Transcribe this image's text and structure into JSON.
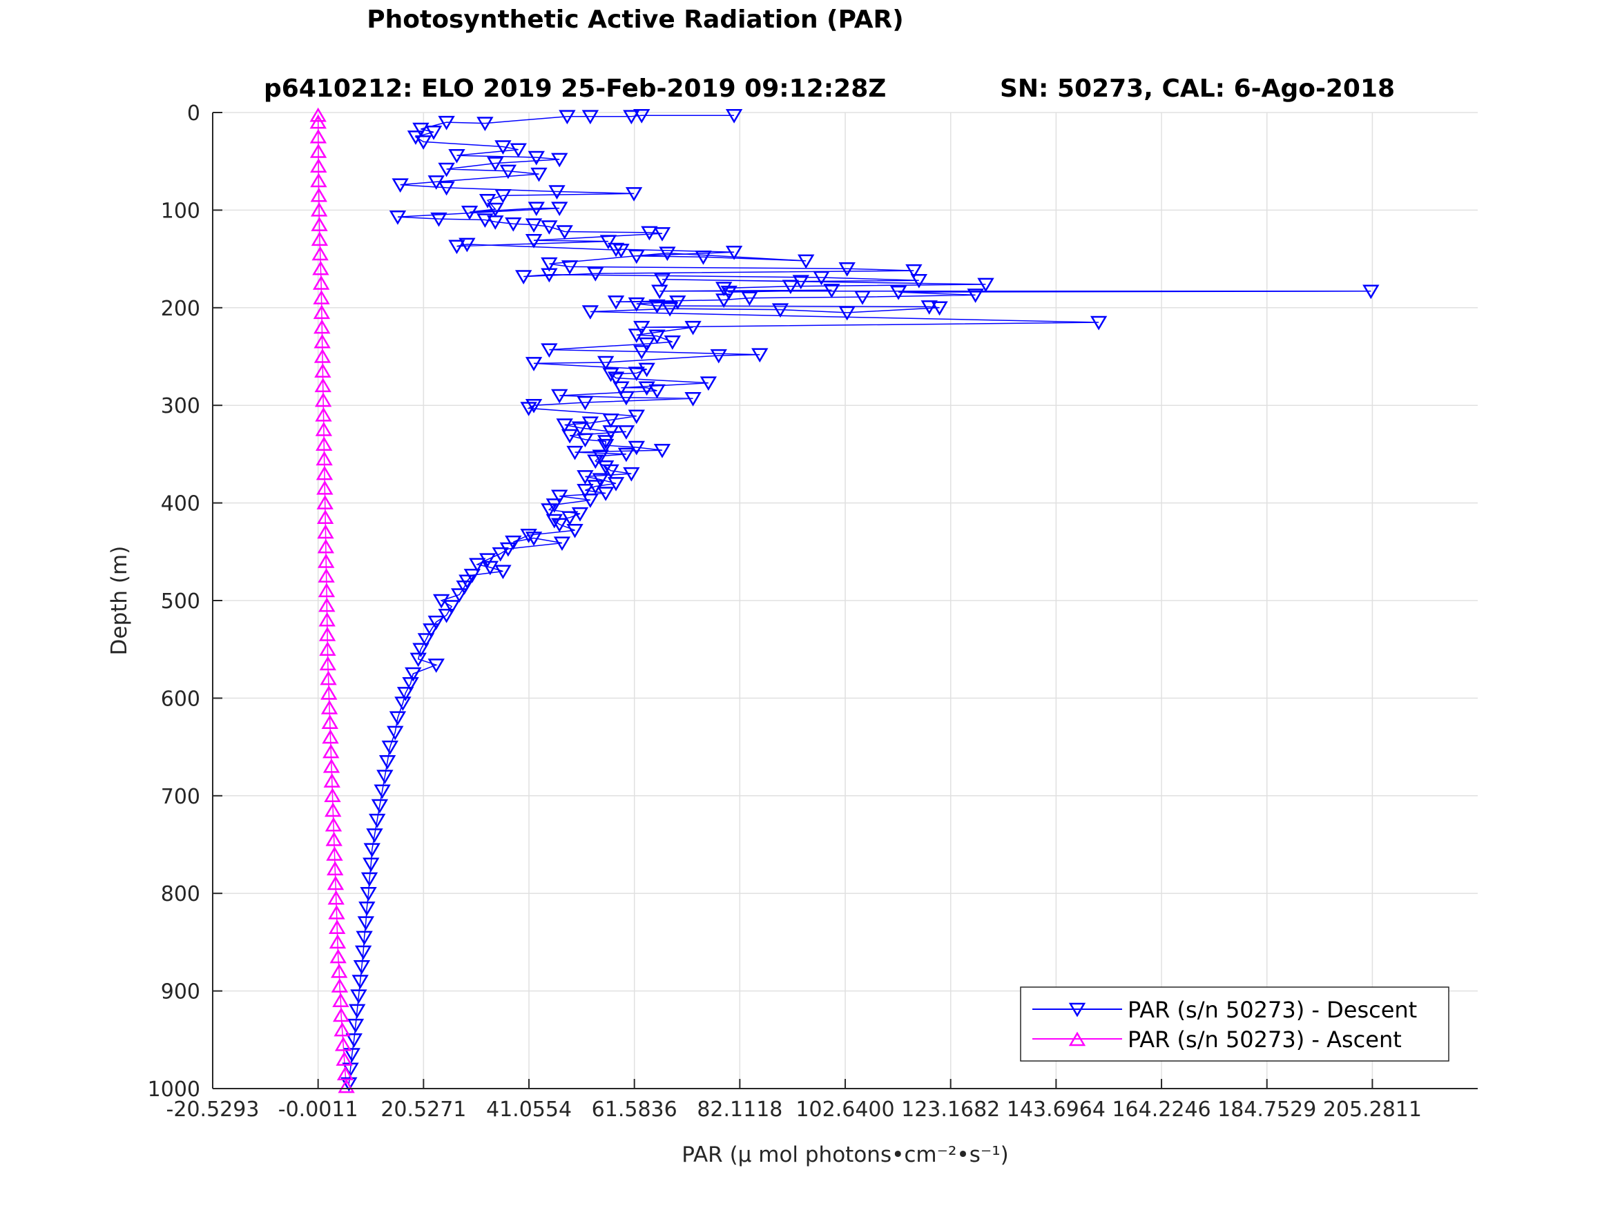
{
  "chart_data": {
    "type": "scatter",
    "title": "Photosynthetic Active Radiation (PAR)",
    "subtitle_left": "p6410212: ELO 2019 25-Feb-2019 09:12:28Z",
    "subtitle_right": "SN: 50273, CAL: 6-Ago-2018",
    "xlabel": "PAR (μ mol photons•cm⁻²•s⁻¹)",
    "ylabel": "Depth (m)",
    "xlim": [
      -20.5293,
      225.8
    ],
    "ylim": [
      0,
      1000
    ],
    "y_reversed": true,
    "grid": true,
    "legend_position": "bottom-right",
    "xticks": [
      -20.5293,
      -0.0011,
      20.5271,
      41.0554,
      61.5836,
      82.1118,
      102.64,
      123.1682,
      143.6964,
      164.2246,
      184.7529,
      205.2811
    ],
    "xtick_labels": [
      "-20.5293",
      "-0.0011",
      "20.5271",
      "41.0554",
      "61.5836",
      "82.1118",
      "102.6400",
      "123.1682",
      "143.6964",
      "164.2246",
      "184.7529",
      "205.2811"
    ],
    "yticks": [
      0,
      100,
      200,
      300,
      400,
      500,
      600,
      700,
      800,
      900,
      1000
    ],
    "ytick_labels": [
      "0",
      "100",
      "200",
      "300",
      "400",
      "500",
      "600",
      "700",
      "800",
      "900",
      "1000"
    ],
    "series": [
      {
        "name": "PAR (s/n 50273) - Descent",
        "color": "#0000ff",
        "marker": "triangle-down",
        "points": [
          [
            81.0,
            3
          ],
          [
            63.0,
            3
          ],
          [
            61.0,
            4
          ],
          [
            53.0,
            4
          ],
          [
            48.5,
            4
          ],
          [
            32.5,
            11
          ],
          [
            25.0,
            10
          ],
          [
            20.0,
            17
          ],
          [
            22.5,
            20
          ],
          [
            19.0,
            25
          ],
          [
            20.5,
            30
          ],
          [
            36.0,
            35
          ],
          [
            39.0,
            38
          ],
          [
            27.0,
            44
          ],
          [
            42.5,
            46
          ],
          [
            47.0,
            48
          ],
          [
            34.5,
            52
          ],
          [
            25.0,
            58
          ],
          [
            37.0,
            60
          ],
          [
            43.0,
            63
          ],
          [
            23.0,
            71
          ],
          [
            16.0,
            74
          ],
          [
            25.0,
            77
          ],
          [
            46.5,
            81
          ],
          [
            61.5,
            83
          ],
          [
            36.0,
            85
          ],
          [
            33.0,
            90
          ],
          [
            34.5,
            99
          ],
          [
            29.5,
            102
          ],
          [
            42.5,
            98
          ],
          [
            47.0,
            98
          ],
          [
            15.5,
            107
          ],
          [
            23.5,
            109
          ],
          [
            32.5,
            110
          ],
          [
            34.5,
            112
          ],
          [
            38.0,
            114
          ],
          [
            42.0,
            115
          ],
          [
            45.0,
            117
          ],
          [
            48.0,
            122
          ],
          [
            64.5,
            123
          ],
          [
            67.0,
            124
          ],
          [
            42.0,
            131
          ],
          [
            56.5,
            132
          ],
          [
            27.0,
            137
          ],
          [
            29.0,
            135
          ],
          [
            59.0,
            141
          ],
          [
            58.0,
            140
          ],
          [
            81.0,
            143
          ],
          [
            62.0,
            147
          ],
          [
            75.0,
            148
          ],
          [
            95.0,
            152
          ],
          [
            68.0,
            144
          ],
          [
            45.0,
            155
          ],
          [
            49.0,
            158
          ],
          [
            103.0,
            160
          ],
          [
            116.0,
            162
          ],
          [
            54.0,
            165
          ],
          [
            40.0,
            168
          ],
          [
            45.0,
            166
          ],
          [
            98.0,
            169
          ],
          [
            117.0,
            172
          ],
          [
            94.0,
            173
          ],
          [
            67.0,
            171
          ],
          [
            130.0,
            176
          ],
          [
            92.0,
            178
          ],
          [
            79.0,
            180
          ],
          [
            80.0,
            184
          ],
          [
            100.0,
            182
          ],
          [
            66.5,
            183
          ],
          [
            205.0,
            183
          ],
          [
            113.0,
            184
          ],
          [
            128.0,
            187
          ],
          [
            106.0,
            189
          ],
          [
            84.0,
            190
          ],
          [
            79.0,
            192
          ],
          [
            58.0,
            194
          ],
          [
            70.0,
            194
          ],
          [
            62.0,
            196
          ],
          [
            66.0,
            198
          ],
          [
            119.0,
            199
          ],
          [
            121.0,
            200
          ],
          [
            103.0,
            205
          ],
          [
            90.0,
            202
          ],
          [
            68.5,
            201
          ],
          [
            53.0,
            204
          ],
          [
            152.0,
            215
          ],
          [
            63.0,
            220
          ],
          [
            73.0,
            220
          ],
          [
            62.0,
            228
          ],
          [
            66.0,
            229
          ],
          [
            69.0,
            235
          ],
          [
            64.0,
            237
          ],
          [
            45.0,
            243
          ],
          [
            63.0,
            245
          ],
          [
            86.0,
            248
          ],
          [
            78.0,
            249
          ],
          [
            56.0,
            256
          ],
          [
            42.0,
            257
          ],
          [
            64.0,
            263
          ],
          [
            62.0,
            267
          ],
          [
            57.0,
            268
          ],
          [
            58.0,
            272
          ],
          [
            76.0,
            277
          ],
          [
            59.0,
            282
          ],
          [
            64.0,
            282
          ],
          [
            66.0,
            285
          ],
          [
            47.0,
            290
          ],
          [
            60.0,
            292
          ],
          [
            73.0,
            293
          ],
          [
            52.0,
            297
          ],
          [
            42.0,
            300
          ],
          [
            41.0,
            303
          ],
          [
            62.0,
            311
          ],
          [
            57.0,
            315
          ],
          [
            53.0,
            318
          ],
          [
            48.0,
            320
          ],
          [
            51.0,
            323
          ],
          [
            57.0,
            327
          ],
          [
            60.0,
            327
          ],
          [
            49.0,
            331
          ],
          [
            52.0,
            335
          ],
          [
            56.0,
            337
          ],
          [
            56.0,
            341
          ],
          [
            62.0,
            343
          ],
          [
            67.0,
            346
          ],
          [
            50.0,
            348
          ],
          [
            60.0,
            350
          ],
          [
            55.0,
            352
          ],
          [
            54.0,
            357
          ],
          [
            56.0,
            363
          ],
          [
            57.0,
            367
          ],
          [
            61.0,
            370
          ],
          [
            52.0,
            373
          ],
          [
            55.0,
            376
          ],
          [
            58.0,
            380
          ],
          [
            54.0,
            383
          ],
          [
            52.0,
            387
          ],
          [
            56.0,
            390
          ],
          [
            47.0,
            393
          ],
          [
            53.0,
            397
          ],
          [
            46.0,
            402
          ],
          [
            45.0,
            407
          ],
          [
            51.0,
            411
          ],
          [
            49.0,
            415
          ],
          [
            46.0,
            418
          ],
          [
            47.0,
            422
          ],
          [
            50.0,
            428
          ],
          [
            41.0,
            433
          ],
          [
            38.0,
            440
          ],
          [
            42.0,
            436
          ],
          [
            47.5,
            441
          ],
          [
            37.0,
            447
          ],
          [
            35.5,
            452
          ],
          [
            33.0,
            458
          ],
          [
            31.0,
            463
          ],
          [
            33.5,
            466
          ],
          [
            36.0,
            470
          ],
          [
            30.0,
            474
          ],
          [
            29.0,
            480
          ],
          [
            28.5,
            486
          ],
          [
            27.5,
            494
          ],
          [
            24.0,
            500
          ],
          [
            26.0,
            506
          ],
          [
            25.0,
            515
          ],
          [
            23.0,
            522
          ],
          [
            22.0,
            530
          ],
          [
            21.0,
            540
          ],
          [
            20.0,
            550
          ],
          [
            19.5,
            560
          ],
          [
            23.0,
            566
          ],
          [
            18.5,
            575
          ],
          [
            18.0,
            585
          ],
          [
            17.0,
            595
          ],
          [
            16.5,
            605
          ],
          [
            15.5,
            620
          ],
          [
            15.0,
            635
          ],
          [
            14.0,
            650
          ],
          [
            13.5,
            665
          ],
          [
            13.0,
            680
          ],
          [
            12.5,
            695
          ],
          [
            12.0,
            710
          ],
          [
            11.5,
            725
          ],
          [
            11.0,
            740
          ],
          [
            10.5,
            755
          ],
          [
            10.3,
            770
          ],
          [
            10.0,
            785
          ],
          [
            9.8,
            800
          ],
          [
            9.5,
            815
          ],
          [
            9.3,
            830
          ],
          [
            9.0,
            845
          ],
          [
            8.8,
            860
          ],
          [
            8.5,
            875
          ],
          [
            8.2,
            890
          ],
          [
            7.9,
            905
          ],
          [
            7.6,
            920
          ],
          [
            7.3,
            935
          ],
          [
            7.0,
            950
          ],
          [
            6.6,
            965
          ],
          [
            6.3,
            980
          ],
          [
            6.0,
            995
          ]
        ]
      },
      {
        "name": "PAR (s/n 50273) - Ascent",
        "color": "#ff00ff",
        "marker": "triangle-up",
        "points": [
          [
            5.5,
            998
          ],
          [
            5.3,
            985
          ],
          [
            5.1,
            970
          ],
          [
            4.9,
            955
          ],
          [
            4.7,
            940
          ],
          [
            4.5,
            925
          ],
          [
            4.4,
            910
          ],
          [
            4.2,
            895
          ],
          [
            4.1,
            880
          ],
          [
            3.9,
            865
          ],
          [
            3.8,
            850
          ],
          [
            3.7,
            835
          ],
          [
            3.6,
            820
          ],
          [
            3.5,
            805
          ],
          [
            3.4,
            790
          ],
          [
            3.3,
            775
          ],
          [
            3.2,
            760
          ],
          [
            3.1,
            745
          ],
          [
            3.0,
            730
          ],
          [
            2.9,
            715
          ],
          [
            2.8,
            700
          ],
          [
            2.7,
            685
          ],
          [
            2.6,
            670
          ],
          [
            2.5,
            655
          ],
          [
            2.4,
            640
          ],
          [
            2.3,
            625
          ],
          [
            2.2,
            610
          ],
          [
            2.1,
            595
          ],
          [
            2.0,
            580
          ],
          [
            1.9,
            565
          ],
          [
            1.85,
            550
          ],
          [
            1.8,
            535
          ],
          [
            1.75,
            520
          ],
          [
            1.7,
            505
          ],
          [
            1.65,
            490
          ],
          [
            1.6,
            475
          ],
          [
            1.55,
            460
          ],
          [
            1.5,
            445
          ],
          [
            1.45,
            430
          ],
          [
            1.4,
            415
          ],
          [
            1.35,
            400
          ],
          [
            1.3,
            385
          ],
          [
            1.25,
            370
          ],
          [
            1.2,
            355
          ],
          [
            1.15,
            340
          ],
          [
            1.1,
            325
          ],
          [
            1.05,
            310
          ],
          [
            1.0,
            295
          ],
          [
            0.95,
            280
          ],
          [
            0.9,
            265
          ],
          [
            0.85,
            250
          ],
          [
            0.8,
            235
          ],
          [
            0.75,
            220
          ],
          [
            0.7,
            205
          ],
          [
            0.65,
            190
          ],
          [
            0.6,
            175
          ],
          [
            0.5,
            160
          ],
          [
            0.4,
            145
          ],
          [
            0.3,
            130
          ],
          [
            0.25,
            115
          ],
          [
            0.2,
            100
          ],
          [
            0.15,
            85
          ],
          [
            0.1,
            70
          ],
          [
            0.08,
            55
          ],
          [
            0.05,
            40
          ],
          [
            0.03,
            25
          ],
          [
            0.01,
            10
          ],
          [
            0.0,
            3
          ]
        ]
      }
    ]
  }
}
